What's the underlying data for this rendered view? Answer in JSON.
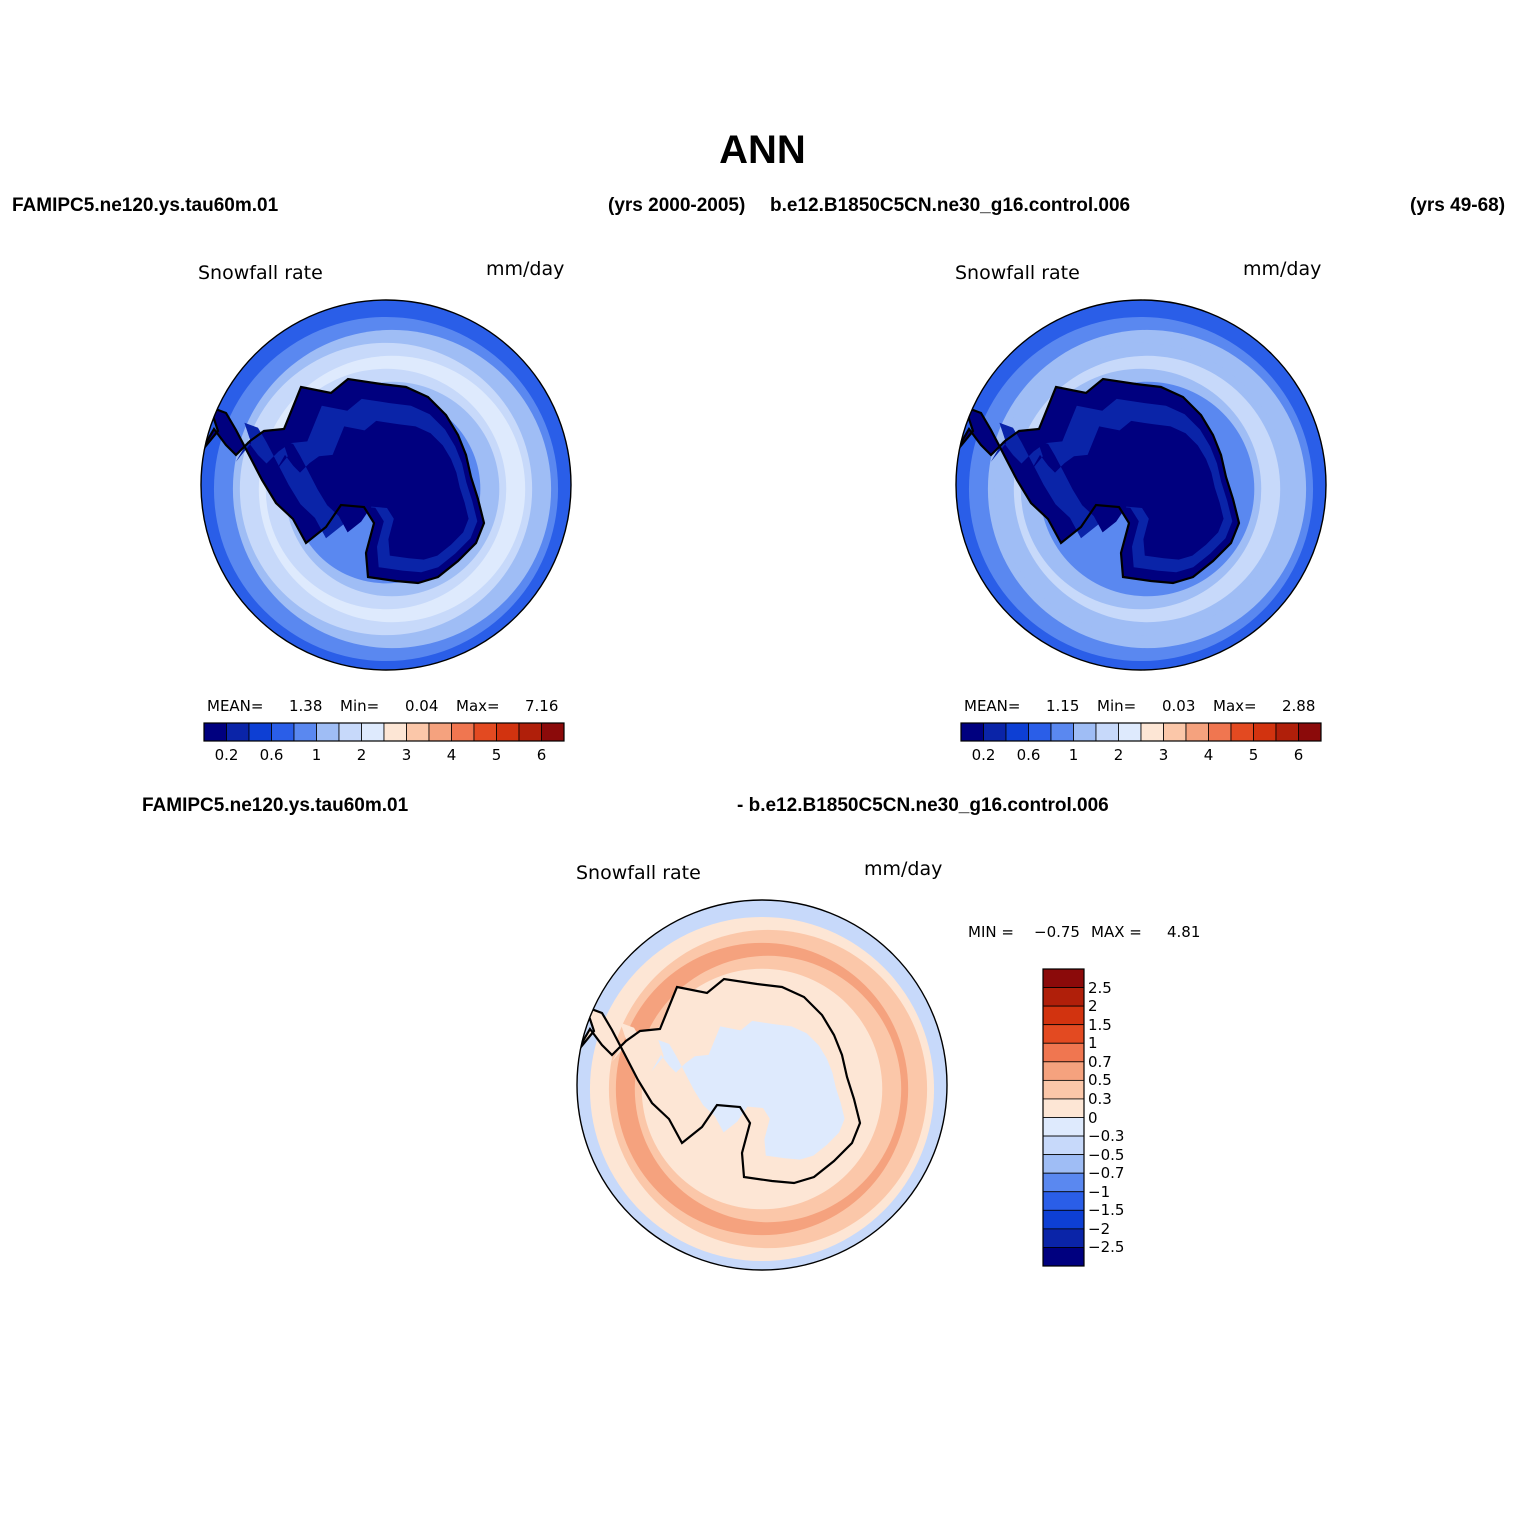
{
  "title": "ANN",
  "top_row": {
    "left_case": "FAMIPC5.ne120.ys.tau60m.01",
    "left_years": "(yrs 2000-2005)",
    "right_case": "b.e12.B1850C5CN.ne30_g16.control.006",
    "right_years": "(yrs 49-68)"
  },
  "diff_header": {
    "left": "FAMIPC5.ne120.ys.tau60m.01",
    "right": "- b.e12.B1850C5CN.ne30_g16.control.006"
  },
  "panels": [
    {
      "id": "test",
      "variable": "Snowfall rate",
      "units": "mm/day",
      "stats": {
        "mean_label": "MEAN=",
        "mean": "1.38",
        "min_label": "Min=",
        "min": "0.04",
        "max_label": "Max=",
        "max": "7.16"
      },
      "colorbar_ticks": [
        "0.2",
        "0.6",
        "1",
        "2",
        "3",
        "4",
        "5",
        "6"
      ]
    },
    {
      "id": "control",
      "variable": "Snowfall rate",
      "units": "mm/day",
      "stats": {
        "mean_label": "MEAN=",
        "mean": "1.15",
        "min_label": "Min=",
        "min": "0.03",
        "max_label": "Max=",
        "max": "2.88"
      },
      "colorbar_ticks": [
        "0.2",
        "0.6",
        "1",
        "2",
        "3",
        "4",
        "5",
        "6"
      ]
    },
    {
      "id": "difference",
      "variable": "Snowfall rate",
      "units": "mm/day",
      "stats": {
        "min_label": "MIN =",
        "min": "−0.75",
        "max_label": "MAX =",
        "max": "4.81"
      },
      "colorbar_ticks": [
        "2.5",
        "2",
        "1.5",
        "1",
        "0.7",
        "0.5",
        "0.3",
        "0",
        "−0.3",
        "−0.5",
        "−0.7",
        "−1",
        "−1.5",
        "−2",
        "−2.5"
      ]
    }
  ],
  "colors": {
    "palette": [
      "#00007f",
      "#0a24a8",
      "#0d3fd4",
      "#2a5ee8",
      "#5a88f0",
      "#9fbdf5",
      "#c7d9fa",
      "#deeafd",
      "#fde6d5",
      "#fbc7a9",
      "#f5a27e",
      "#f07650",
      "#e34a21",
      "#d2330f",
      "#b01f0a",
      "#8b0a0a"
    ],
    "outline": "#000000"
  }
}
